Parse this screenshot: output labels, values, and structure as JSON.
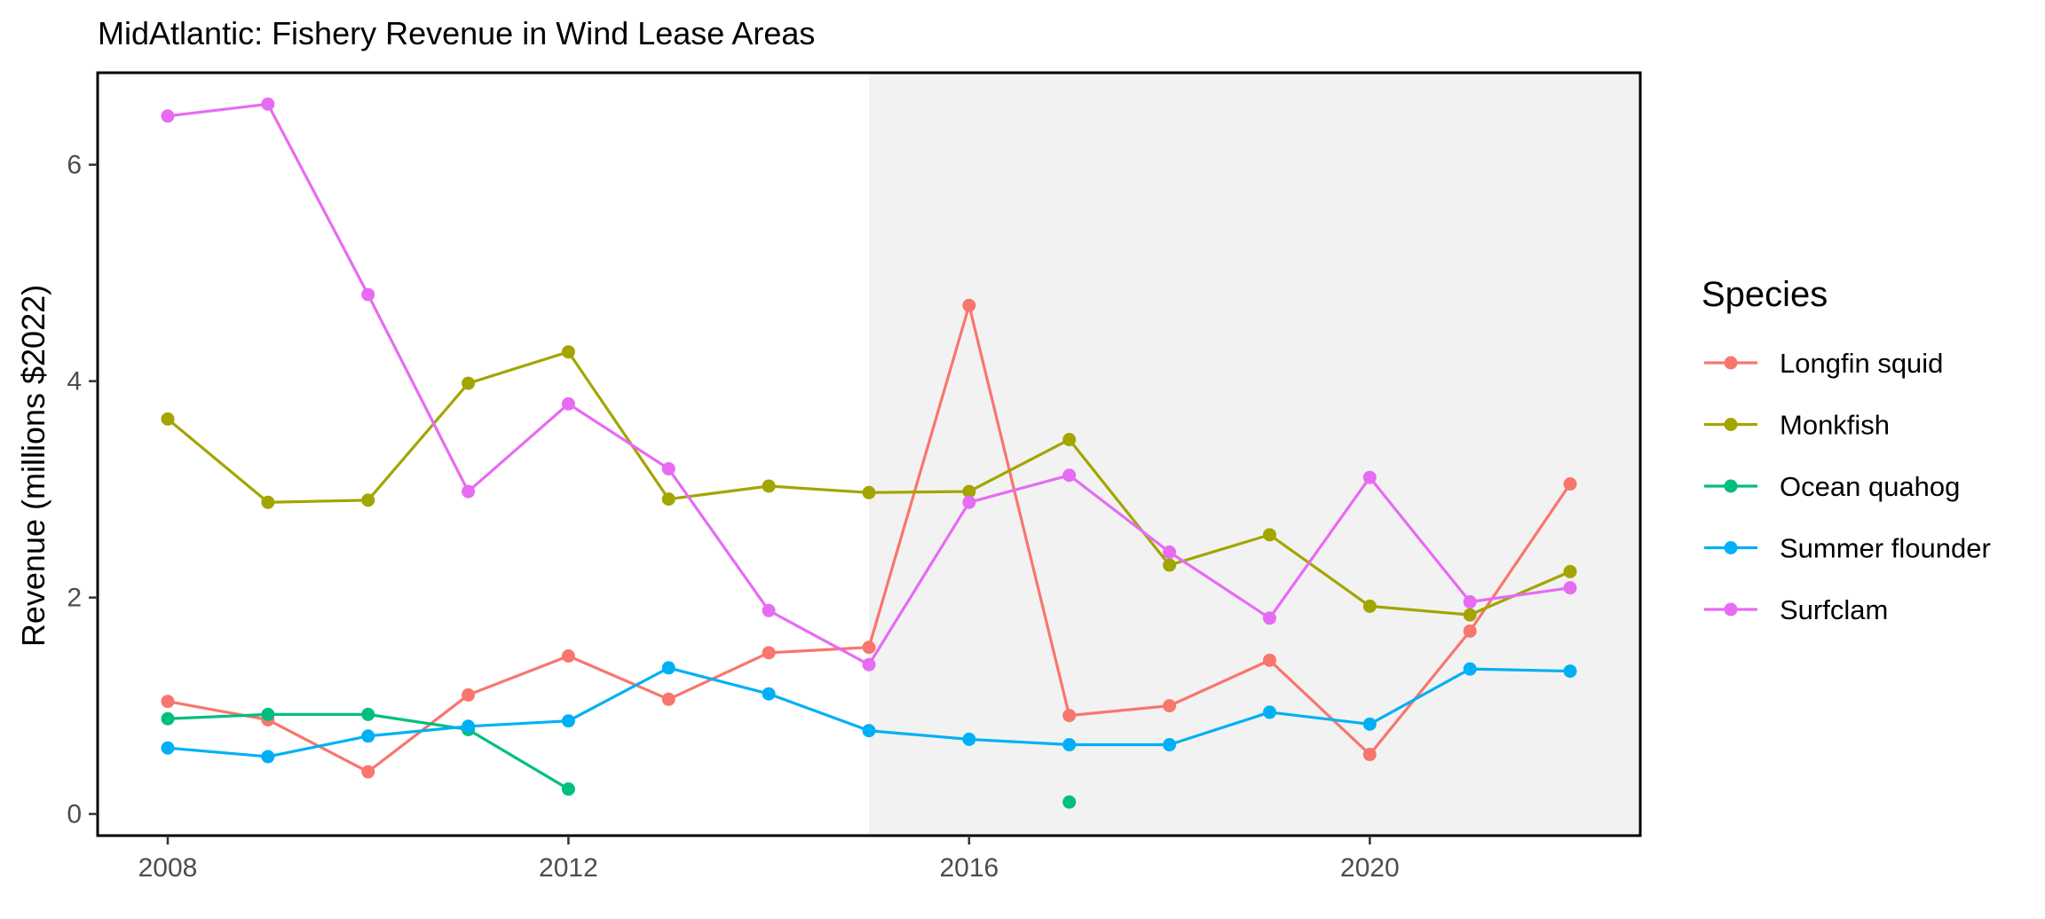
{
  "chart_data": {
    "type": "line",
    "title": "MidAtlantic: Fishery Revenue in Wind Lease Areas",
    "xlabel": "",
    "ylabel": "Revenue (millions $2022)",
    "x": [
      2008,
      2009,
      2010,
      2011,
      2012,
      2013,
      2014,
      2015,
      2016,
      2017,
      2018,
      2019,
      2020,
      2021,
      2022
    ],
    "xlim": [
      2007.3,
      2022.7
    ],
    "ylim": [
      -0.2,
      6.85
    ],
    "x_ticks": [
      2008,
      2012,
      2016,
      2020
    ],
    "x_tick_labels": [
      "2008",
      "2012",
      "2016",
      "2020"
    ],
    "y_ticks": [
      0,
      2,
      4,
      6
    ],
    "y_tick_labels": [
      "0",
      "2",
      "4",
      "6"
    ],
    "grid": false,
    "shaded_region": {
      "x_start": 2015,
      "x_end": 2022.7,
      "color": "#f2f2f2"
    },
    "legend": {
      "title": "Species",
      "position": "right"
    },
    "series": [
      {
        "name": "Longfin squid",
        "color": "#F8766D",
        "values": [
          1.04,
          0.87,
          0.39,
          1.1,
          1.46,
          1.06,
          1.49,
          1.54,
          4.7,
          0.91,
          1.0,
          1.42,
          0.55,
          1.69,
          3.05
        ]
      },
      {
        "name": "Monkfish",
        "color": "#A3A500",
        "values": [
          3.65,
          2.88,
          2.9,
          3.98,
          4.27,
          2.91,
          3.03,
          2.97,
          2.98,
          3.46,
          2.3,
          2.58,
          1.92,
          1.84,
          2.24
        ]
      },
      {
        "name": "Ocean quahog",
        "color": "#00BF7D",
        "values": [
          0.88,
          0.92,
          0.92,
          0.78,
          0.23,
          null,
          null,
          null,
          null,
          0.11,
          null,
          null,
          null,
          null,
          null
        ]
      },
      {
        "name": "Summer flounder",
        "color": "#00B0F6",
        "values": [
          0.61,
          0.53,
          0.72,
          0.81,
          0.86,
          1.35,
          1.11,
          0.77,
          0.69,
          0.64,
          0.64,
          0.94,
          0.83,
          1.34,
          1.32
        ]
      },
      {
        "name": "Surfclam",
        "color": "#E76BF3",
        "values": [
          6.45,
          6.56,
          4.8,
          2.98,
          3.79,
          3.19,
          1.88,
          1.38,
          2.88,
          3.13,
          2.42,
          1.81,
          3.11,
          1.96,
          2.09
        ]
      }
    ]
  }
}
